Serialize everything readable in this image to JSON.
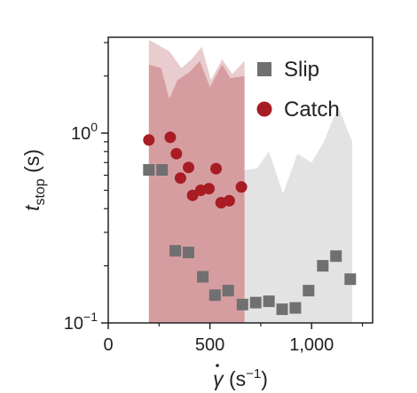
{
  "chart_data": {
    "type": "scatter",
    "x_axis": {
      "label": "γ̇ (s⁻¹)",
      "label_symbol": "γ",
      "label_unit": " (s",
      "label_exp": "−1",
      "label_close": ")",
      "range": [
        0,
        1300
      ],
      "ticks": [
        {
          "value": 0,
          "label": "0"
        },
        {
          "value": 500,
          "label": "500"
        },
        {
          "value": 1000,
          "label": "1,000"
        }
      ]
    },
    "y_axis": {
      "label": "t_stop (s)",
      "label_symbol": "t",
      "label_sub": "stop",
      "label_unit": " (s)",
      "scale": "log",
      "range": [
        0.1,
        3.2
      ],
      "ticks": [
        {
          "value": 0.1,
          "base": "10",
          "exp": "−1"
        },
        {
          "value": 1,
          "base": "10",
          "exp": "0"
        }
      ]
    },
    "legend_position": "top-right",
    "series": [
      {
        "name": "Slip",
        "marker": "square",
        "color": "#707070",
        "band_color": "#e3e3e3",
        "points": [
          [
            200,
            0.64
          ],
          [
            265,
            0.64
          ],
          [
            330,
            0.24
          ],
          [
            395,
            0.235
          ],
          [
            465,
            0.175
          ],
          [
            525,
            0.14
          ],
          [
            590,
            0.148
          ],
          [
            660,
            0.125
          ],
          [
            725,
            0.128
          ],
          [
            790,
            0.13
          ],
          [
            855,
            0.118
          ],
          [
            920,
            0.12
          ],
          [
            985,
            0.148
          ],
          [
            1055,
            0.2
          ],
          [
            1120,
            0.225
          ],
          [
            1190,
            0.17
          ]
        ],
        "band": {
          "x": [
            670,
            730,
            790,
            860,
            930,
            1000,
            1060,
            1130,
            1200
          ],
          "lower": [
            0.1,
            0.1,
            0.1,
            0.1,
            0.1,
            0.1,
            0.1,
            0.1,
            0.1
          ],
          "upper": [
            0.64,
            0.65,
            0.8,
            0.48,
            0.78,
            0.7,
            0.9,
            1.38,
            0.9
          ]
        }
      },
      {
        "name": "Catch",
        "marker": "circle",
        "color": "#a81c24",
        "band_color": "#cf8e92",
        "points": [
          [
            200,
            0.92
          ],
          [
            305,
            0.95
          ],
          [
            335,
            0.78
          ],
          [
            355,
            0.58
          ],
          [
            395,
            0.66
          ],
          [
            415,
            0.47
          ],
          [
            455,
            0.5
          ],
          [
            495,
            0.51
          ],
          [
            530,
            0.65
          ],
          [
            555,
            0.43
          ],
          [
            595,
            0.44
          ],
          [
            655,
            0.52
          ]
        ],
        "band": {
          "x": [
            200,
            260,
            300,
            340,
            400,
            450,
            500,
            560,
            600,
            670
          ],
          "lower": [
            0.1,
            0.1,
            0.1,
            0.1,
            0.1,
            0.1,
            0.1,
            0.1,
            0.1,
            0.1
          ],
          "upper": [
            2.3,
            2.2,
            1.52,
            1.9,
            2.1,
            2.4,
            1.75,
            2.3,
            1.95,
            2.0
          ]
        },
        "band_outer": {
          "x": [
            200,
            300,
            360,
            410,
            460,
            505,
            560,
            610,
            670
          ],
          "lower": [
            0.1,
            0.1,
            0.1,
            0.1,
            0.1,
            0.1,
            0.1,
            0.1,
            0.1
          ],
          "upper": [
            3.1,
            2.7,
            2.2,
            2.45,
            2.85,
            1.9,
            2.45,
            2.05,
            2.4
          ]
        }
      }
    ]
  }
}
